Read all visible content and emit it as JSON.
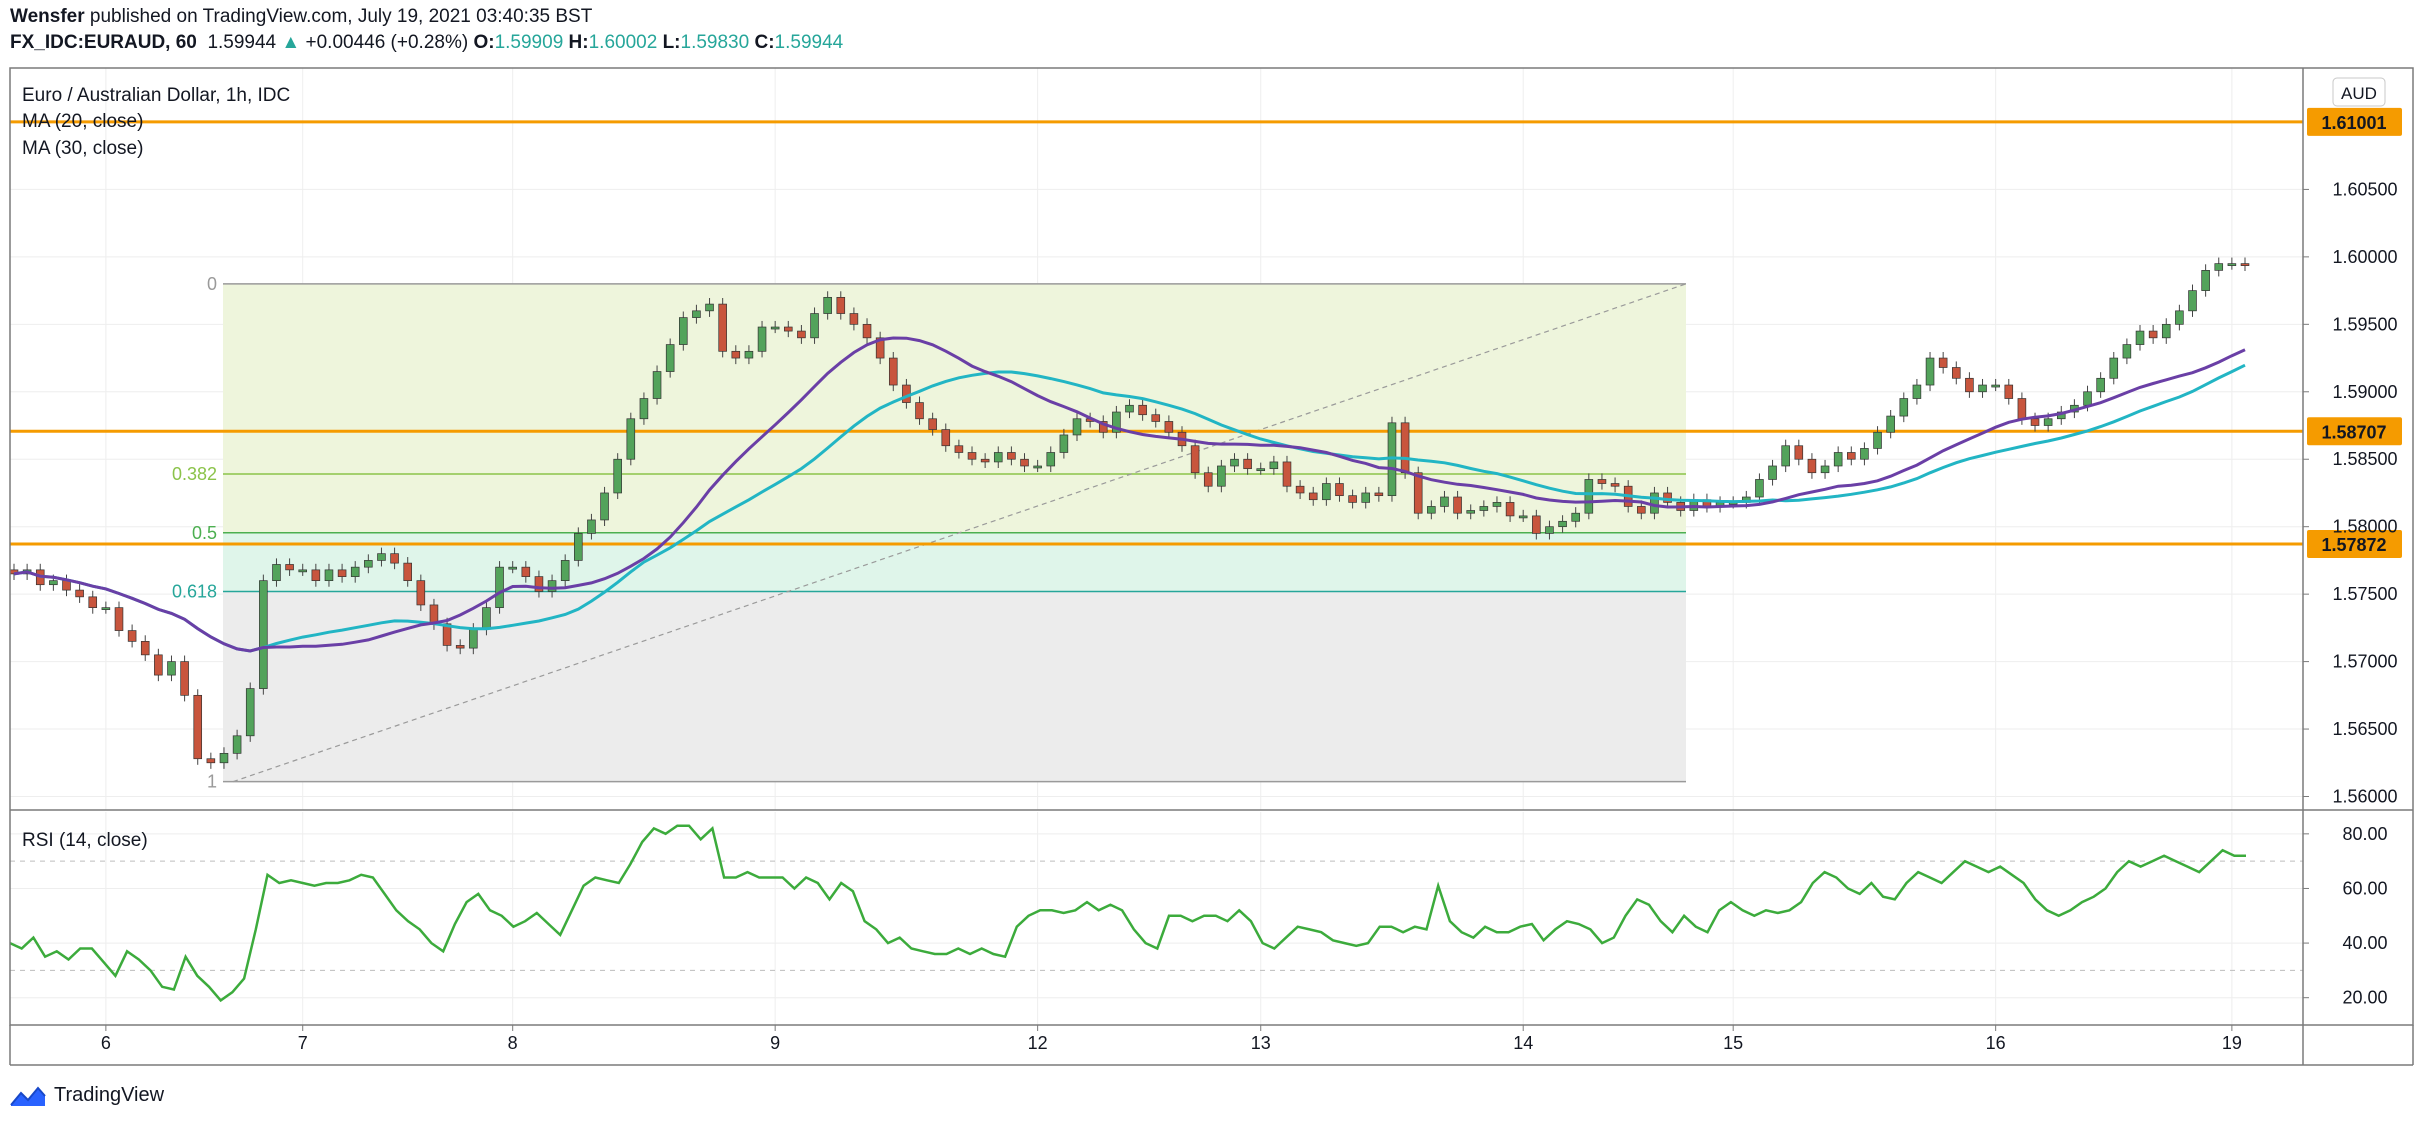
{
  "header": {
    "publisher": "Wensfer",
    "published_text": "published on TradingView.com, July 19, 2021 03:40:35 BST",
    "symbol": "FX_IDC:EURAUD, 60",
    "last": "1.59944",
    "change_arrow": "▲",
    "change": "+0.00446 (+0.28%)",
    "o_label": "O:",
    "o": "1.59909",
    "h_label": "H:",
    "h": "1.60002",
    "l_label": "L:",
    "l": "1.59830",
    "c_label": "C:",
    "c": "1.59944"
  },
  "footer": {
    "brand": "TradingView",
    "icon": "tradingview-logo-icon"
  },
  "colors": {
    "up": "#26a69a",
    "down": "#ef5350",
    "candle_up": "#53a35b",
    "candle_down": "#c8553d",
    "ma20": "#6a3fa6",
    "ma30": "#22b5c4",
    "hline": "#f59b00",
    "rsi": "#3cab3c",
    "fib_zone_top": "#eef5dc",
    "fib_zone_mid": "#dff5ea",
    "fib_zone_low": "#ececec"
  },
  "chart_data": {
    "type": "candlestick",
    "title": "Euro / Australian Dollar, 1h, IDC",
    "currency": "AUD",
    "indicators": [
      "MA (20, close)",
      "MA (30, close)"
    ],
    "ylim": [
      1.559,
      1.614
    ],
    "y_ticks": [
      "1.60500",
      "1.60000",
      "1.59500",
      "1.59000",
      "1.58500",
      "1.58000",
      "1.57500",
      "1.57000",
      "1.56500",
      "1.56000"
    ],
    "x_ticks": [
      "6",
      "7",
      "8",
      "9",
      "12",
      "13",
      "14",
      "15",
      "16",
      "19"
    ],
    "horizontal_lines": [
      {
        "value": 1.61001,
        "label": "1.61001"
      },
      {
        "value": 1.58707,
        "label": "1.58707"
      },
      {
        "value": 1.57872,
        "label": "1.57872"
      }
    ],
    "fibonacci": {
      "high": 1.598,
      "low": 1.5611,
      "levels": [
        {
          "label": "0",
          "ratio": 0
        },
        {
          "label": "0.382",
          "ratio": 0.382
        },
        {
          "label": "0.5",
          "ratio": 0.5
        },
        {
          "label": "0.618",
          "ratio": 0.618
        },
        {
          "label": "1",
          "ratio": 1
        }
      ]
    },
    "close_series": [
      {
        "session": "5",
        "closes": [
          1.5765,
          1.5768,
          1.5757,
          1.576,
          1.5753,
          1.5748,
          1.574
        ]
      },
      {
        "session": "6",
        "closes": [
          1.574,
          1.5723,
          1.5715,
          1.5705,
          1.569,
          1.57,
          1.5675,
          1.5628,
          1.5625,
          1.5632,
          1.5645,
          1.568,
          1.576,
          1.5772,
          1.5768
        ]
      },
      {
        "session": "7",
        "closes": [
          1.5768,
          1.576,
          1.5768,
          1.5763,
          1.577,
          1.5775,
          1.578,
          1.5773,
          1.576,
          1.5742,
          1.5728,
          1.5712,
          1.571,
          1.5724,
          1.574,
          1.577
        ]
      },
      {
        "session": "8",
        "closes": [
          1.577,
          1.5763,
          1.5752,
          1.576,
          1.5775,
          1.5795,
          1.5805,
          1.5825,
          1.585,
          1.588,
          1.5895,
          1.5915,
          1.5935,
          1.5955,
          1.596,
          1.5965,
          1.593,
          1.5925,
          1.593,
          1.5948
        ]
      },
      {
        "session": "9",
        "closes": [
          1.5948,
          1.5945,
          1.594,
          1.5958,
          1.597,
          1.5958,
          1.595,
          1.594,
          1.5925,
          1.5905,
          1.5892,
          1.588,
          1.5872,
          1.586,
          1.5855,
          1.585,
          1.5848,
          1.5855,
          1.585,
          1.5845
        ]
      },
      {
        "session": "12",
        "closes": [
          1.5845,
          1.5855,
          1.5868,
          1.588,
          1.5878,
          1.587,
          1.5885,
          1.589,
          1.5883,
          1.5878,
          1.587,
          1.586,
          1.584,
          1.583,
          1.5845,
          1.585,
          1.5843
        ]
      },
      {
        "session": "13",
        "closes": [
          1.5843,
          1.5848,
          1.583,
          1.5825,
          1.582,
          1.5832,
          1.5823,
          1.5818,
          1.5825,
          1.5823,
          1.5877,
          1.584,
          1.581,
          1.5815,
          1.5822,
          1.581,
          1.5812,
          1.5815,
          1.5818,
          1.5808
        ]
      },
      {
        "session": "14",
        "closes": [
          1.5808,
          1.5795,
          1.58,
          1.5804,
          1.581,
          1.5835,
          1.5832,
          1.583,
          1.5815,
          1.581,
          1.5825,
          1.5818,
          1.5812,
          1.582,
          1.5815,
          1.5818
        ]
      },
      {
        "session": "15",
        "closes": [
          1.5818,
          1.5822,
          1.5835,
          1.5845,
          1.586,
          1.585,
          1.584,
          1.5845,
          1.5855,
          1.585,
          1.5858,
          1.587,
          1.5882,
          1.5895,
          1.5905,
          1.5925,
          1.5918,
          1.591,
          1.59,
          1.5905
        ]
      },
      {
        "session": "16",
        "closes": [
          1.5905,
          1.5895,
          1.588,
          1.5875,
          1.588,
          1.5885,
          1.589,
          1.59,
          1.591,
          1.5925,
          1.5935,
          1.5945,
          1.594,
          1.595,
          1.596,
          1.5975,
          1.599,
          1.5995
        ]
      },
      {
        "session": "19",
        "closes": [
          1.5995,
          1.5994
        ]
      }
    ],
    "rsi": {
      "label": "RSI (14, close)",
      "ylim": [
        10,
        88
      ],
      "y_ticks": [
        "80.00",
        "60.00",
        "40.00",
        "20.00"
      ],
      "bands": [
        30,
        70
      ],
      "values": [
        40,
        38,
        42,
        35,
        37,
        34,
        38,
        38,
        33,
        28,
        37,
        34,
        30,
        24,
        23,
        35,
        28,
        24,
        19,
        22,
        27,
        45,
        65,
        62,
        63,
        62,
        61,
        62,
        62,
        63,
        65,
        64,
        58,
        52,
        48,
        45,
        40,
        37,
        47,
        55,
        58,
        52,
        50,
        46,
        48,
        51,
        47,
        43,
        52,
        61,
        64,
        63,
        62,
        69,
        77,
        82,
        80,
        83,
        83,
        78,
        82,
        64,
        64,
        66,
        64,
        64,
        64,
        60,
        64,
        62,
        56,
        62,
        59,
        48,
        45,
        40,
        42,
        38,
        37,
        36,
        36,
        38,
        36,
        38,
        36,
        35,
        46,
        50,
        52,
        52,
        51,
        52,
        55,
        52,
        54,
        52,
        45,
        40,
        38,
        50,
        50,
        48,
        50,
        50,
        48,
        52,
        48,
        40,
        38,
        42,
        46,
        45,
        44,
        41,
        40,
        39,
        40,
        46,
        46,
        44,
        46,
        45,
        61,
        48,
        44,
        42,
        46,
        44,
        44,
        46,
        47,
        41,
        45,
        48,
        47,
        45,
        40,
        42,
        50,
        56,
        54,
        48,
        44,
        50,
        46,
        44,
        52,
        55,
        52,
        50,
        52,
        51,
        52,
        55,
        62,
        66,
        64,
        60,
        58,
        62,
        57,
        56,
        62,
        66,
        64,
        62,
        66,
        70,
        68,
        66,
        68,
        65,
        62,
        56,
        52,
        50,
        52,
        55,
        57,
        60,
        66,
        70,
        68,
        70,
        72,
        70,
        68,
        66,
        70,
        74,
        72,
        72
      ]
    }
  }
}
